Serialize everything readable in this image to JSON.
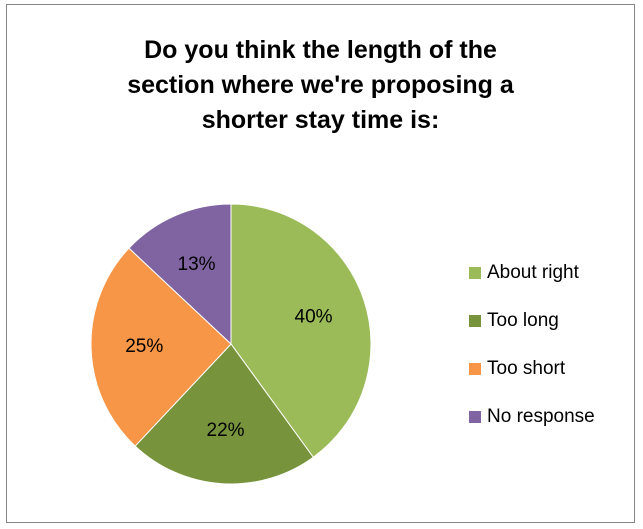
{
  "chart_data": {
    "type": "pie",
    "title_lines": [
      "Do you think the length of the",
      "section where we're proposing a",
      "shorter stay time is:"
    ],
    "categories": [
      "About right",
      "Too long",
      "Too short",
      "No response"
    ],
    "values": [
      40,
      22,
      25,
      13
    ],
    "data_labels": [
      "40%",
      "22%",
      "25%",
      "13%"
    ],
    "colors": [
      "#9BBB59",
      "#77933C",
      "#F79646",
      "#8064A2"
    ],
    "legend_position": "right",
    "start_angle": "12 o'clock",
    "direction": "clockwise"
  }
}
